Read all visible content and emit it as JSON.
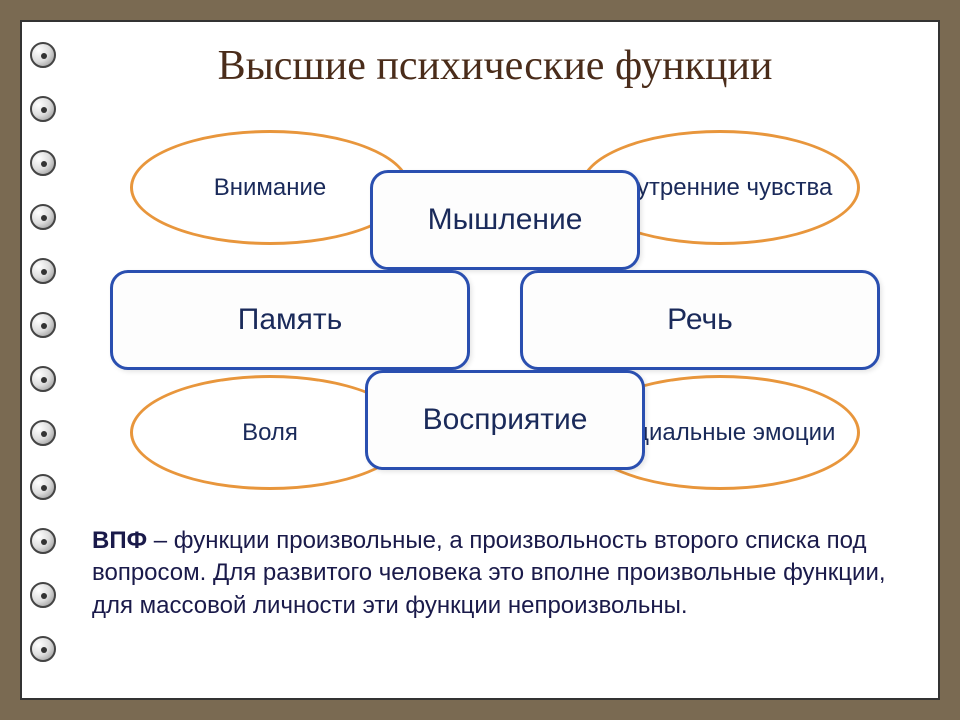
{
  "slide": {
    "title": "Высшие психические функции",
    "background_color": "#ffffff",
    "frame_color": "#7a6a52"
  },
  "diagram": {
    "ellipse_border_color": "#e8963c",
    "rect_border_color": "#2a4fb0",
    "text_color": "#1a2a5a",
    "ellipses": {
      "top_left": "Внимание",
      "top_right": "Внутренние чувства",
      "bottom_left": "Воля",
      "bottom_right": "Социальные эмоции"
    },
    "rects": {
      "top": "Мышление",
      "left": "Память",
      "right": "Речь",
      "bottom": "Восприятие"
    }
  },
  "footer": {
    "bold_prefix": "ВПФ",
    "text": " – функции произвольные, а произвольность второго списка под вопросом. Для развитого человека это вполне произвольные функции, для массовой личности эти функции непроизвольны.",
    "font_size": 24,
    "color": "#1a1a4a"
  },
  "colors": {
    "title_color": "#4a2c1a",
    "ellipse_border": "#e8963c",
    "rect_border": "#2a4fb0",
    "node_text": "#1a2a5a"
  }
}
